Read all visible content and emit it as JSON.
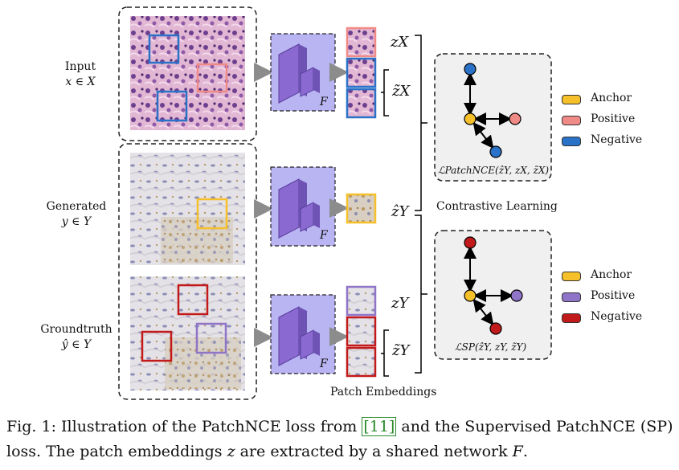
{
  "rows": {
    "input": {
      "name": "Input",
      "math": "x ∈ X"
    },
    "generated": {
      "name": "Generated",
      "math": "y ∈ Y"
    },
    "groundtruth": {
      "name": "Groundtruth",
      "math": "ŷ ∈ Y"
    }
  },
  "network_label": "F",
  "embeddings": {
    "zX": "zX",
    "zX_tilde": "z̃X",
    "zY_hat": "ẑY",
    "zY": "zY",
    "zY_tilde": "z̃Y"
  },
  "patch_embeddings_label": "Patch Embeddings",
  "contrastive_label": "Contrastive Learning",
  "loss_top": "ℒPatchNCE(ẑY, zX, z̃X)",
  "loss_bottom": "ℒSP(ẑY, zY, z̃Y)",
  "legend_top": [
    {
      "label": "Anchor",
      "color": "#f5c02a"
    },
    {
      "label": "Positive",
      "color": "#f08a86"
    },
    {
      "label": "Negative",
      "color": "#2a72c8"
    }
  ],
  "legend_bottom": [
    {
      "label": "Anchor",
      "color": "#f5c02a"
    },
    {
      "label": "Positive",
      "color": "#8f74c8"
    },
    {
      "label": "Negative",
      "color": "#c21a1a"
    }
  ],
  "caption": {
    "prefix": "Fig. 1: Illustration of the PatchNCE loss from ",
    "ref": "[11]",
    "middle": " and the Supervised PatchNCE (SP) loss. The patch embeddings ",
    "var": "z",
    "suffix": " are extracted by a shared network ",
    "net": "F",
    "end": "."
  },
  "colors": {
    "blue": "#2a72c8",
    "salmon": "#f08a86",
    "yellow": "#f5c02a",
    "red": "#c21a1a",
    "purple": "#8f74c8",
    "network_fill": "#b9b4f2",
    "block": "#8a6ad0"
  }
}
